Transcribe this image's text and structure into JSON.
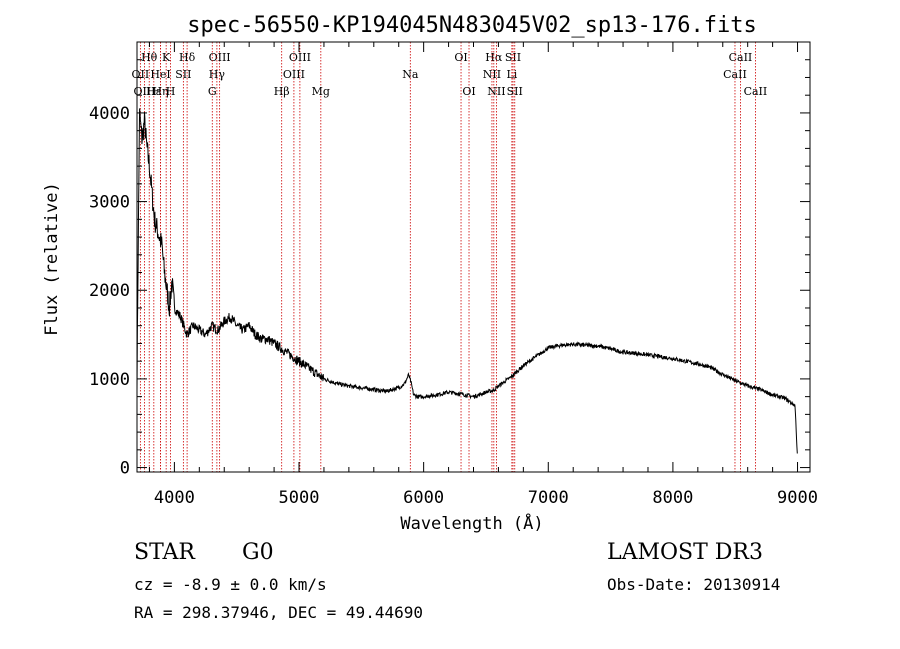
{
  "chart_data": {
    "type": "line",
    "title": "spec-56550-KP194045N483045V02_sp13-176.fits",
    "xlabel": "Wavelength (Å)",
    "ylabel": "Flux (relative)",
    "xlim": [
      3700,
      9100
    ],
    "ylim": [
      -50,
      4800
    ],
    "xticks": [
      4000,
      5000,
      6000,
      7000,
      8000,
      9000
    ],
    "yticks": [
      0,
      1000,
      2000,
      3000,
      4000
    ],
    "series": [
      {
        "name": "flux",
        "x": [
          3700,
          3720,
          3740,
          3760,
          3780,
          3800,
          3820,
          3840,
          3860,
          3880,
          3900,
          3920,
          3940,
          3960,
          3980,
          4000,
          4050,
          4100,
          4150,
          4200,
          4250,
          4300,
          4350,
          4400,
          4450,
          4500,
          4550,
          4600,
          4650,
          4700,
          4750,
          4800,
          4850,
          4900,
          4950,
          5000,
          5050,
          5100,
          5150,
          5200,
          5300,
          5400,
          5500,
          5600,
          5700,
          5800,
          5850,
          5880,
          5900,
          5920,
          5950,
          6000,
          6100,
          6200,
          6300,
          6400,
          6500,
          6560,
          6600,
          6700,
          6800,
          6900,
          7000,
          7100,
          7200,
          7300,
          7400,
          7500,
          7600,
          7700,
          7800,
          7900,
          8000,
          8100,
          8200,
          8300,
          8400,
          8500,
          8600,
          8700,
          8800,
          8900,
          8980,
          9000
        ],
        "y": [
          1000,
          4000,
          3700,
          3900,
          3600,
          3400,
          3100,
          2800,
          2700,
          2600,
          2500,
          2200,
          2000,
          1800,
          2100,
          1800,
          1700,
          1500,
          1600,
          1550,
          1500,
          1600,
          1550,
          1650,
          1700,
          1600,
          1550,
          1600,
          1500,
          1450,
          1450,
          1400,
          1350,
          1300,
          1250,
          1200,
          1150,
          1100,
          1050,
          1000,
          950,
          920,
          900,
          880,
          860,
          900,
          950,
          1050,
          950,
          820,
          800,
          800,
          820,
          850,
          830,
          800,
          850,
          870,
          920,
          1020,
          1150,
          1250,
          1350,
          1380,
          1390,
          1380,
          1370,
          1340,
          1300,
          1290,
          1270,
          1250,
          1230,
          1200,
          1170,
          1130,
          1050,
          980,
          920,
          880,
          820,
          780,
          700,
          100
        ]
      }
    ],
    "emission_lines": [
      {
        "label": "Hθ",
        "wavelength": 3798,
        "row": 1
      },
      {
        "label": "OII",
        "wavelength": 3727,
        "row": 2
      },
      {
        "label": "OIII",
        "wavelength": 3760,
        "row": 3
      },
      {
        "label": "Hε",
        "wavelength": 3835,
        "row": 3
      },
      {
        "label": "HeI",
        "wavelength": 3889,
        "row": 2
      },
      {
        "label": "Hη",
        "wavelength": 3889,
        "row": 3
      },
      {
        "label": "K",
        "wavelength": 3934,
        "row": 1
      },
      {
        "label": "SII",
        "wavelength": 4072,
        "row": 2
      },
      {
        "label": "H",
        "wavelength": 3969,
        "row": 3
      },
      {
        "label": "Hδ",
        "wavelength": 4102,
        "row": 1
      },
      {
        "label": "OIII",
        "wavelength": 4363,
        "row": 1
      },
      {
        "label": "Hγ",
        "wavelength": 4341,
        "row": 2
      },
      {
        "label": "G",
        "wavelength": 4304,
        "row": 3
      },
      {
        "label": "Hβ",
        "wavelength": 4861,
        "row": 3
      },
      {
        "label": "OIII",
        "wavelength": 5007,
        "row": 1
      },
      {
        "label": "OIII",
        "wavelength": 4959,
        "row": 2
      },
      {
        "label": "Mg",
        "wavelength": 5175,
        "row": 3
      },
      {
        "label": "Na",
        "wavelength": 5893,
        "row": 2
      },
      {
        "label": "OI",
        "wavelength": 6300,
        "row": 1
      },
      {
        "label": "OI",
        "wavelength": 6364,
        "row": 3
      },
      {
        "label": "Hα",
        "wavelength": 6563,
        "row": 1
      },
      {
        "label": "SII",
        "wavelength": 6717,
        "row": 1
      },
      {
        "label": "NII",
        "wavelength": 6548,
        "row": 2
      },
      {
        "label": "Li",
        "wavelength": 6708,
        "row": 2
      },
      {
        "label": "NII",
        "wavelength": 6584,
        "row": 3
      },
      {
        "label": "SII",
        "wavelength": 6731,
        "row": 3
      },
      {
        "label": "CaII",
        "wavelength": 8542,
        "row": 1
      },
      {
        "label": "CaII",
        "wavelength": 8498,
        "row": 2
      },
      {
        "label": "CaII",
        "wavelength": 8662,
        "row": 3
      }
    ]
  },
  "footer": {
    "object_type": "STAR",
    "subclass": "G0",
    "cz": "cz = -8.9 ± 0.0 km/s",
    "radec": "RA = 298.37946, DEC =  49.44690",
    "survey": "LAMOST DR3",
    "obs_date": "Obs-Date: 20130914"
  },
  "colors": {
    "line_marker": "#cc0000",
    "spectrum": "#000000"
  }
}
